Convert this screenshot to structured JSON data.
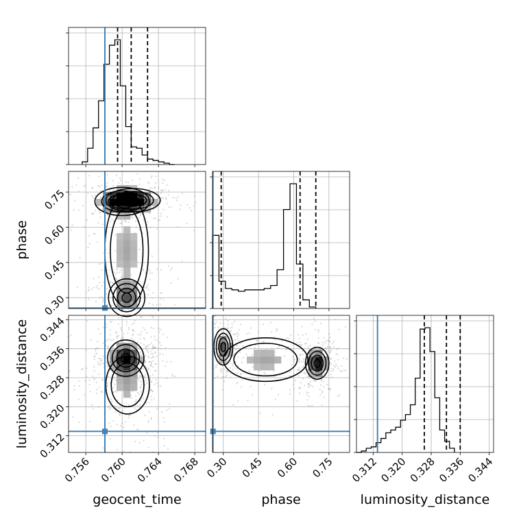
{
  "chart_data": {
    "type": "corner",
    "parameters": [
      "geocent_time",
      "phase",
      "luminosity_distance"
    ],
    "truths": {
      "geocent_time": 0.7581,
      "phase": 0.256,
      "luminosity_distance": 0.3132
    },
    "ranges": {
      "geocent_time": [
        0.7541,
        0.7692
      ],
      "phase": [
        0.254,
        0.838
      ],
      "luminosity_distance": [
        0.3074,
        0.3452
      ]
    },
    "ticks": {
      "geocent_time": [
        "0.756",
        "0.760",
        "0.764",
        "0.768"
      ],
      "phase": [
        "0.30",
        "0.45",
        "0.60",
        "0.75"
      ],
      "luminosity_distance": [
        "0.312",
        "0.320",
        "0.328",
        "0.336",
        "0.344"
      ]
    },
    "marginals": {
      "geocent_time": {
        "bin_width": 0.0006,
        "edges_start": 0.7556,
        "counts": [
          0.02,
          0.12,
          0.27,
          0.47,
          0.74,
          0.88,
          0.92,
          0.58,
          0.28,
          0.13,
          0.12,
          0.07,
          0.04,
          0.03,
          0.02,
          0.01,
          0.0
        ],
        "quantiles": [
          0.7595,
          0.761,
          0.7628
        ]
      },
      "phase": {
        "bin_width": 0.0275,
        "edges_start": 0.254,
        "counts": [
          0.51,
          0.19,
          0.14,
          0.13,
          0.12,
          0.13,
          0.13,
          0.13,
          0.14,
          0.16,
          0.27,
          0.69,
          0.87,
          0.31,
          0.06,
          0.01
        ],
        "quantiles": [
          0.291,
          0.627,
          0.694
        ]
      },
      "luminosity_distance": {
        "bin_width": 0.00135,
        "edges_start": 0.3074,
        "counts": [
          0.0,
          0.01,
          0.03,
          0.04,
          0.07,
          0.1,
          0.14,
          0.16,
          0.18,
          0.23,
          0.27,
          0.34,
          0.53,
          0.88,
          0.89,
          0.72,
          0.39,
          0.16,
          0.08,
          0.03
        ],
        "quantiles": [
          0.3261,
          0.3322,
          0.336
        ]
      }
    }
  }
}
